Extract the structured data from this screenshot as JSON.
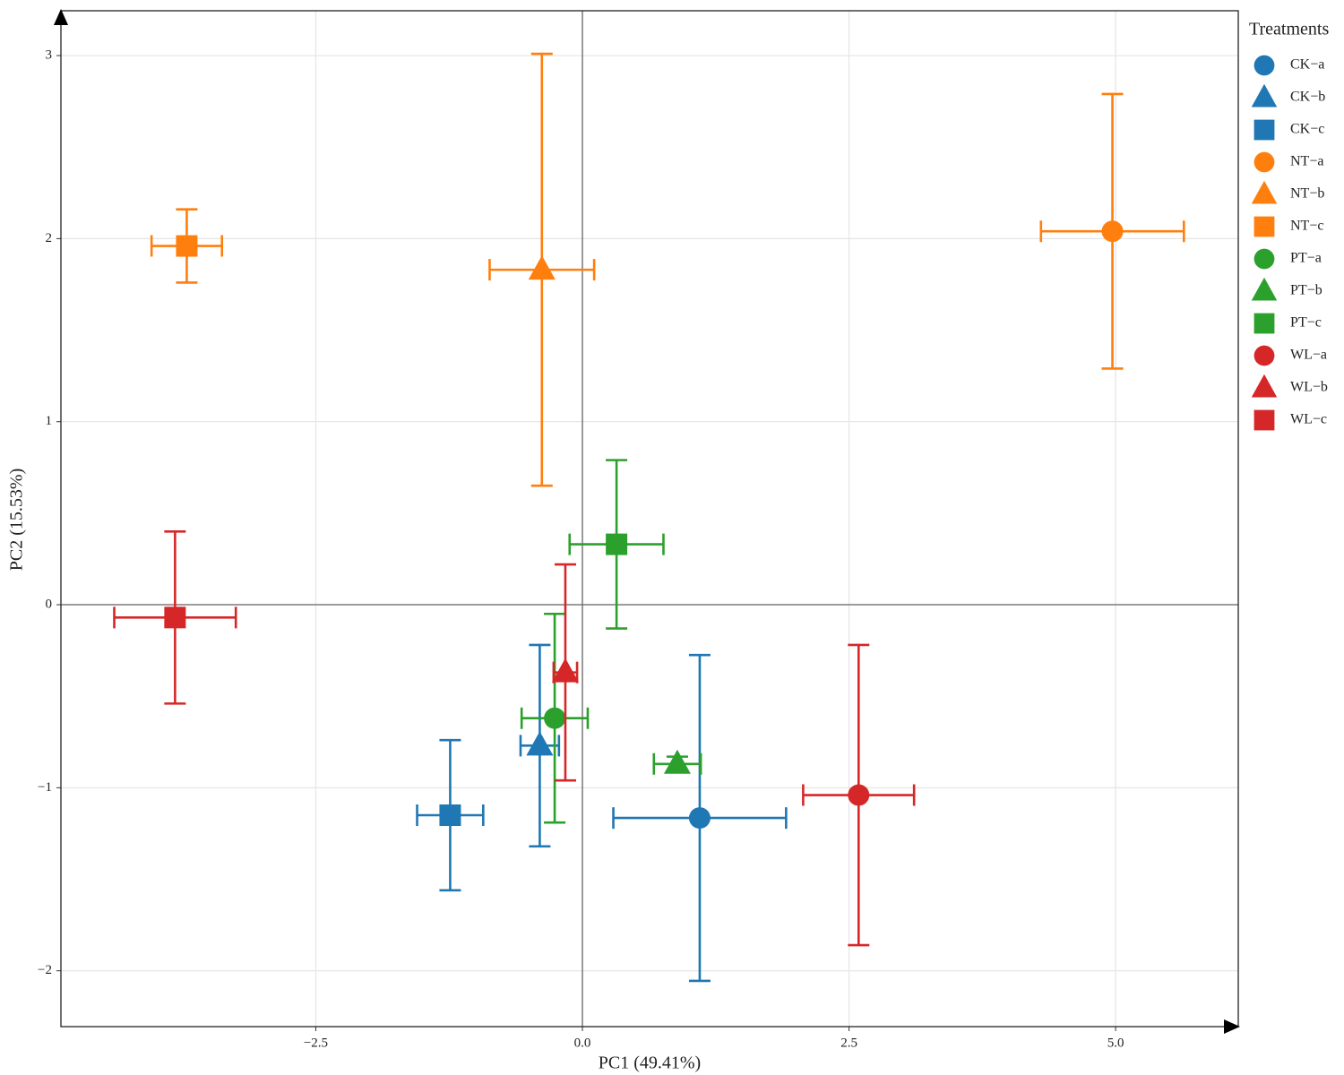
{
  "chart_data": {
    "type": "scatter",
    "x_label": "PC1 (49.41%)",
    "y_label": "PC2 (15.53%)",
    "legend_title": "Treatments",
    "legend_position": "right",
    "xlim": [
      -4.89,
      6.15
    ],
    "ylim": [
      -2.305,
      3.245
    ],
    "xticks": [
      {
        "value": -2.5,
        "label": "−2.5"
      },
      {
        "value": 0,
        "label": "0.0"
      },
      {
        "value": 2.5,
        "label": "2.5"
      },
      {
        "value": 5,
        "label": "5.0"
      }
    ],
    "yticks": [
      {
        "value": -2,
        "label": "−2"
      },
      {
        "value": -1,
        "label": "−1"
      },
      0,
      1,
      2,
      3
    ],
    "grid": true,
    "zero_lines": true,
    "series": [
      {
        "name": "CK−a",
        "color": "#1f77b4",
        "marker": "circle",
        "x": [
          1.1
        ],
        "values": [
          -1.165
        ],
        "xerr": [
          0.81
        ],
        "yerr": [
          0.89
        ]
      },
      {
        "name": "CK−b",
        "color": "#1f77b4",
        "marker": "triangle",
        "x": [
          -0.4
        ],
        "values": [
          -0.77
        ],
        "xerr": [
          0.18
        ],
        "yerr": [
          0.55
        ]
      },
      {
        "name": "CK−c",
        "color": "#1f77b4",
        "marker": "square",
        "x": [
          -1.24
        ],
        "values": [
          -1.15
        ],
        "xerr": [
          0.31
        ],
        "yerr": [
          0.41
        ]
      },
      {
        "name": "NT−a",
        "color": "#ff7f0e",
        "marker": "circle",
        "x": [
          4.97
        ],
        "values": [
          2.04
        ],
        "xerr": [
          0.67
        ],
        "yerr": [
          0.75
        ]
      },
      {
        "name": "NT−b",
        "color": "#ff7f0e",
        "marker": "triangle",
        "x": [
          -0.38
        ],
        "values": [
          1.83
        ],
        "xerr": [
          0.49
        ],
        "yerr": [
          1.18
        ]
      },
      {
        "name": "NT−c",
        "color": "#ff7f0e",
        "marker": "square",
        "x": [
          -3.71
        ],
        "values": [
          1.96
        ],
        "xerr": [
          0.33
        ],
        "yerr": [
          0.2
        ]
      },
      {
        "name": "PT−a",
        "color": "#2ca02c",
        "marker": "circle",
        "x": [
          -0.26
        ],
        "values": [
          -0.62
        ],
        "xerr": [
          0.31
        ],
        "yerr": [
          0.57
        ]
      },
      {
        "name": "PT−b",
        "color": "#2ca02c",
        "marker": "triangle",
        "x": [
          0.89
        ],
        "values": [
          -0.87
        ],
        "xerr": [
          0.22
        ],
        "yerr": [
          0.04
        ]
      },
      {
        "name": "PT−c",
        "color": "#2ca02c",
        "marker": "square",
        "x": [
          0.32
        ],
        "values": [
          0.33
        ],
        "xerr": [
          0.44
        ],
        "yerr": [
          0.46
        ]
      },
      {
        "name": "WL−a",
        "color": "#d62728",
        "marker": "circle",
        "x": [
          2.59
        ],
        "values": [
          -1.04
        ],
        "xerr": [
          0.52
        ],
        "yerr": [
          0.82
        ]
      },
      {
        "name": "WL−b",
        "color": "#d62728",
        "marker": "triangle",
        "x": [
          -0.16
        ],
        "values": [
          -0.37
        ],
        "xerr": [
          0.11
        ],
        "yerr": [
          0.59
        ]
      },
      {
        "name": "WL−c",
        "color": "#d62728",
        "marker": "square",
        "x": [
          -3.82
        ],
        "values": [
          -0.07
        ],
        "xerr": [
          0.57
        ],
        "yerr": [
          0.47
        ]
      }
    ]
  }
}
